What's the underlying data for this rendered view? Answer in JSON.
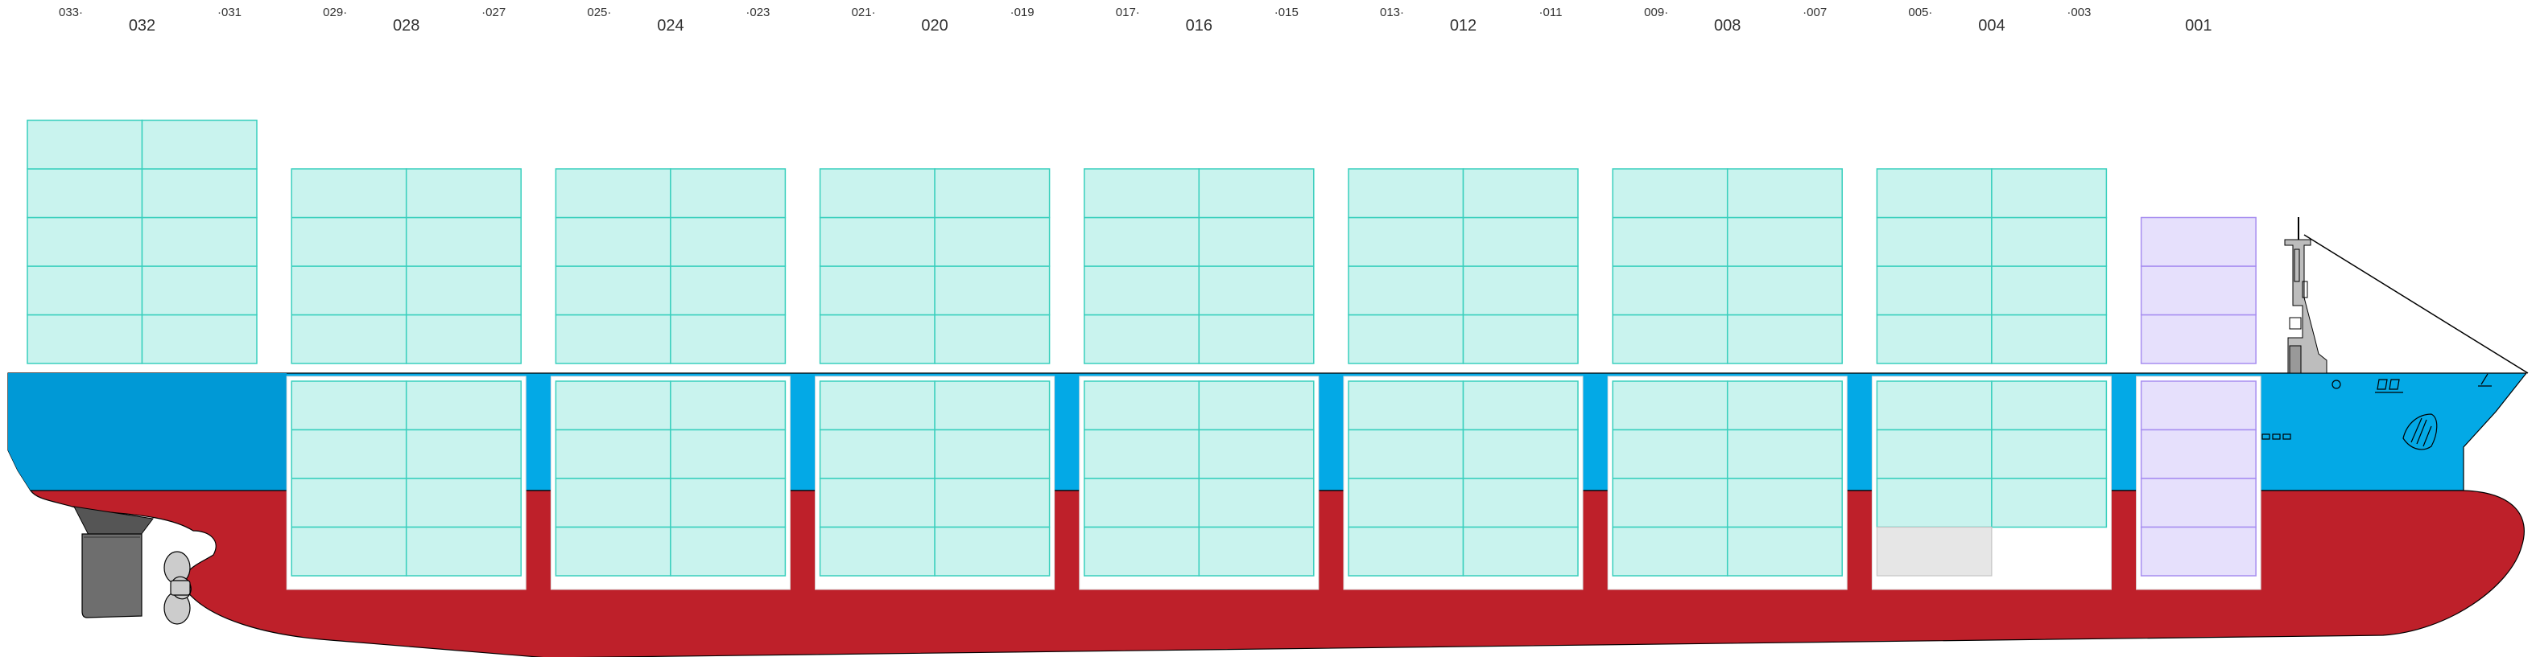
{
  "colors": {
    "hull_upper": "#03a9e6",
    "hull_upper_aft": "#0099d6",
    "hull_lower": "#be202a",
    "hatch_frame": "#ffffff",
    "container_fill": "#c9f3ee",
    "container_stroke": "#39cfbd",
    "reefer_fill": "#e6e0fc",
    "reefer_stroke": "#a78ef0",
    "empty_slot_fill": "#e6e6e6",
    "empty_slot_stroke": "#c4c4c4",
    "superstructure": "#bdbdbd",
    "rudder": "#6e6e6e",
    "propeller": "#cccccc"
  },
  "bays": [
    {
      "id": "bay-032",
      "main": "032",
      "fwd": "033",
      "aft": "031",
      "slot": 0,
      "deck_tiers": 5,
      "hold_tiers": 0,
      "hold_cols": 0,
      "reefer": false
    },
    {
      "id": "bay-028",
      "main": "028",
      "fwd": "029",
      "aft": "027",
      "slot": 1,
      "deck_tiers": 4,
      "hold_tiers": 4,
      "hold_cols": 2,
      "reefer": false
    },
    {
      "id": "bay-024",
      "main": "024",
      "fwd": "025",
      "aft": "023",
      "slot": 2,
      "deck_tiers": 4,
      "hold_tiers": 4,
      "hold_cols": 2,
      "reefer": false
    },
    {
      "id": "bay-020",
      "main": "020",
      "fwd": "021",
      "aft": "019",
      "slot": 3,
      "deck_tiers": 4,
      "hold_tiers": 4,
      "hold_cols": 2,
      "reefer": false
    },
    {
      "id": "bay-016",
      "main": "016",
      "fwd": "017",
      "aft": "015",
      "slot": 4,
      "deck_tiers": 4,
      "hold_tiers": 4,
      "hold_cols": 2,
      "reefer": false
    },
    {
      "id": "bay-012",
      "main": "012",
      "fwd": "013",
      "aft": "011",
      "slot": 5,
      "deck_tiers": 4,
      "hold_tiers": 4,
      "hold_cols": 2,
      "reefer": false
    },
    {
      "id": "bay-008",
      "main": "008",
      "fwd": "009",
      "aft": "007",
      "slot": 6,
      "deck_tiers": 4,
      "hold_tiers": 4,
      "hold_cols": 2,
      "reefer": false
    },
    {
      "id": "bay-004",
      "main": "004",
      "fwd": "005",
      "aft": "003",
      "slot": 7,
      "deck_tiers": 4,
      "hold_tiers": 3,
      "hold_cols": 2,
      "reefer": false,
      "empty_bottom_left": true
    },
    {
      "id": "bay-001",
      "main": "001",
      "fwd": "",
      "aft": "",
      "slot": 8,
      "deck_tiers": 3,
      "hold_tiers": 4,
      "hold_cols": 1,
      "reefer": true
    }
  ]
}
